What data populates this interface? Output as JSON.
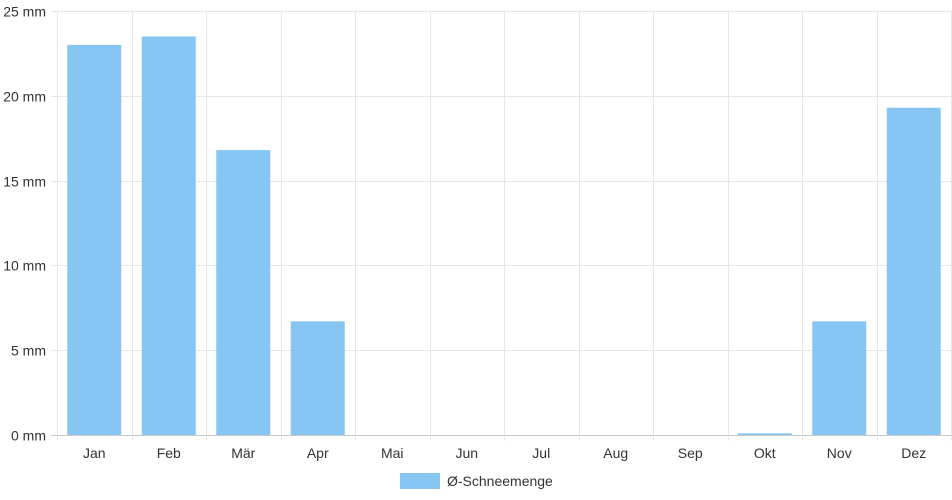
{
  "chart_data": {
    "type": "bar",
    "title": "",
    "xlabel": "",
    "ylabel": "",
    "categories": [
      "Jan",
      "Feb",
      "Mär",
      "Apr",
      "Mai",
      "Jun",
      "Jul",
      "Aug",
      "Sep",
      "Okt",
      "Nov",
      "Dez"
    ],
    "series": [
      {
        "name": "Ø-Schneemenge",
        "values": [
          23.0,
          23.5,
          16.8,
          6.7,
          0,
          0,
          0,
          0,
          0,
          0.1,
          6.7,
          19.3
        ],
        "color": "#87c6f2"
      }
    ],
    "ylim": [
      0,
      25
    ],
    "y_ticks": [
      0,
      5,
      10,
      15,
      20,
      25
    ],
    "y_tick_labels": [
      "0 mm",
      "5 mm",
      "10 mm",
      "15 mm",
      "20 mm",
      "25 mm"
    ],
    "grid": true,
    "legend_position": "bottom-center"
  }
}
